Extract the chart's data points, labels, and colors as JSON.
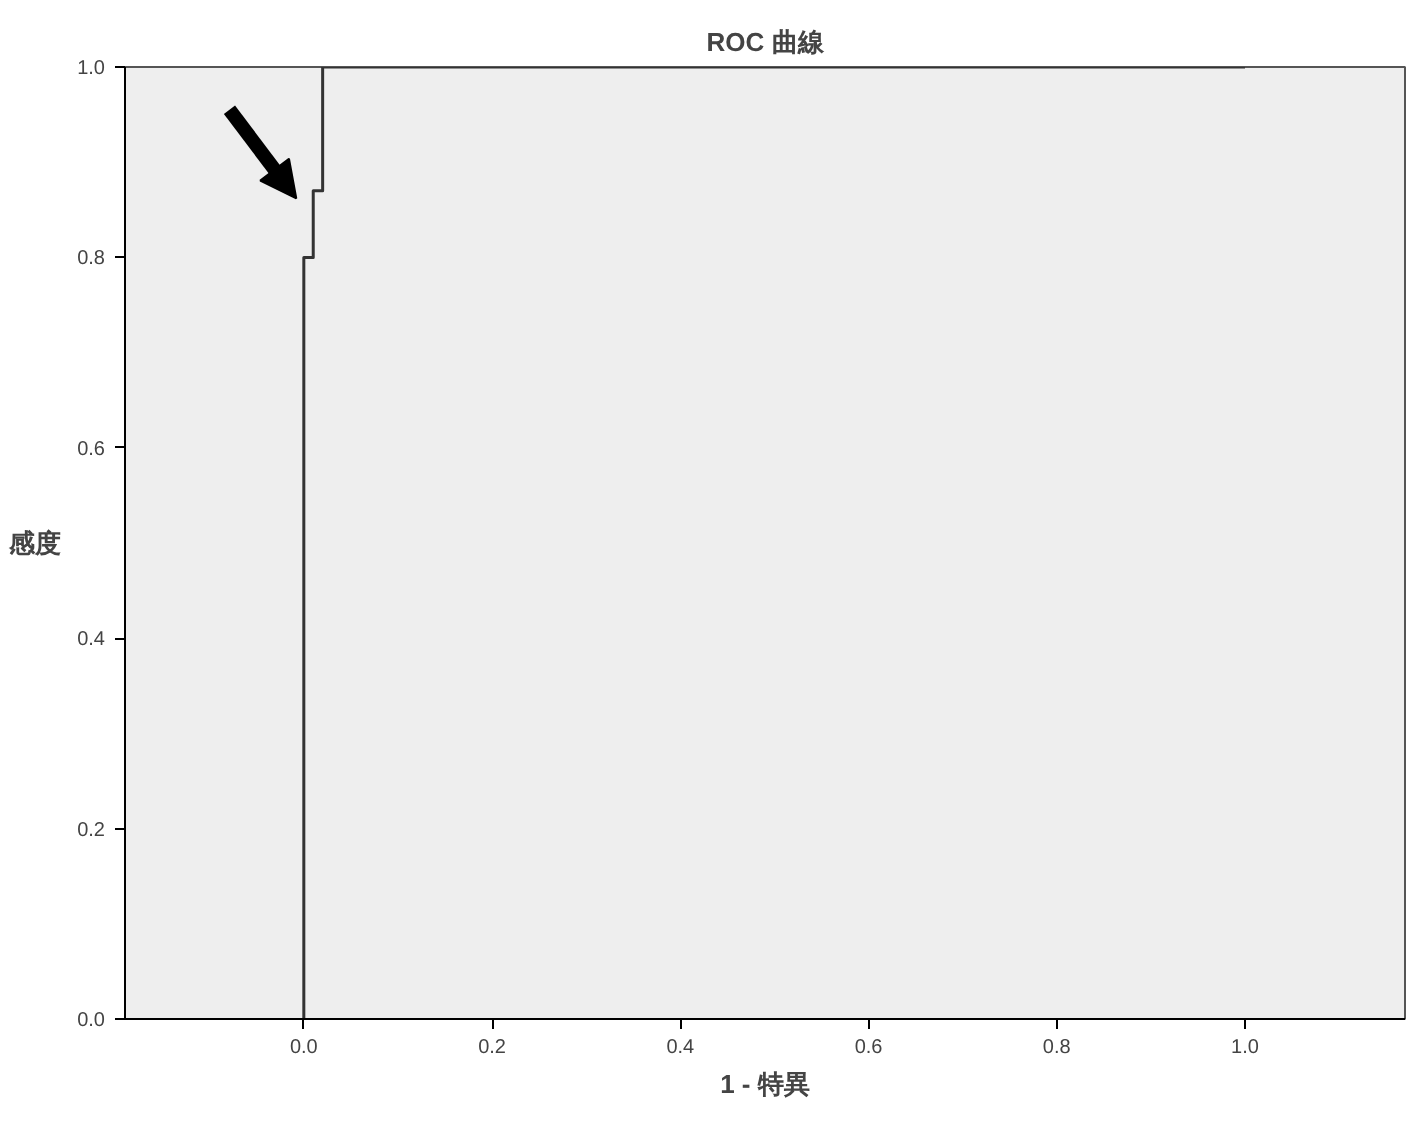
{
  "chart_data": {
    "type": "step",
    "title": "ROC 曲線",
    "xlabel": "1 - 特異",
    "ylabel": "感度",
    "x": [
      0,
      0,
      0.01,
      0.01,
      0.02,
      0.02,
      1
    ],
    "series": [
      {
        "color": "#333333",
        "values": [
          0,
          0.8,
          0.8,
          0.87,
          0.87,
          1,
          1
        ]
      }
    ],
    "xlim": [
      -0.19,
      1.17
    ],
    "ylim": [
      0,
      1
    ],
    "xticks": [
      {
        "value": 0,
        "label": "0.0"
      },
      0.2,
      0.4,
      0.6,
      0.8,
      {
        "value": 1,
        "label": "1.0"
      }
    ],
    "yticks": [
      {
        "value": 0,
        "label": "0.0"
      },
      0.2,
      0.4,
      0.6,
      0.8,
      {
        "value": 1,
        "label": "1.0"
      }
    ],
    "grid": false,
    "marker": "none",
    "line_style": "solid"
  }
}
